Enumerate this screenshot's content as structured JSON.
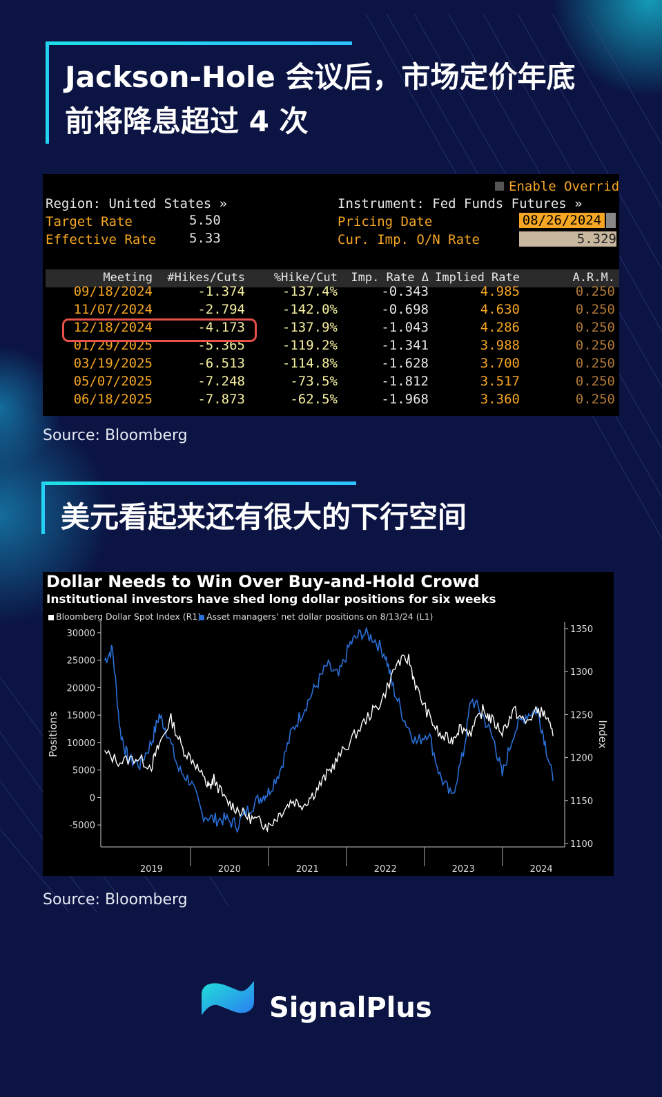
{
  "section1": {
    "title_line1": "Jackson-Hole 会议后，市场定价年底",
    "title_line2": "前将降息超过 4 次",
    "source": "Source: Bloomberg"
  },
  "terminal": {
    "enable_override": "Enable Override",
    "region": "Region: United States »",
    "instrument": "Instrument: Fed Funds Futures »",
    "target_rate_label": "Target Rate",
    "target_rate_value": "5.50",
    "effective_rate_label": "Effective Rate",
    "effective_rate_value": "5.33",
    "pricing_date_label": "Pricing Date",
    "pricing_date_value": "08/26/2024",
    "cur_imp_label": "Cur. Imp. O/N Rate",
    "cur_imp_value": "5.329",
    "columns": [
      "Meeting",
      "#Hikes/Cuts",
      "%Hike/Cut",
      "Imp. Rate Δ",
      "Implied Rate",
      "A.R.M."
    ],
    "rows": [
      [
        "09/18/2024",
        "-1.374",
        "-137.4%",
        "-0.343",
        "4.985",
        "0.250"
      ],
      [
        "11/07/2024",
        "-2.794",
        "-142.0%",
        "-0.698",
        "4.630",
        "0.250"
      ],
      [
        "12/18/2024",
        "-4.173",
        "-137.9%",
        "-1.043",
        "4.286",
        "0.250"
      ],
      [
        "01/29/2025",
        "-5.365",
        "-119.2%",
        "-1.341",
        "3.988",
        "0.250"
      ],
      [
        "03/19/2025",
        "-6.513",
        "-114.8%",
        "-1.628",
        "3.700",
        "0.250"
      ],
      [
        "05/07/2025",
        "-7.248",
        "-73.5%",
        "-1.812",
        "3.517",
        "0.250"
      ],
      [
        "06/18/2025",
        "-7.873",
        "-62.5%",
        "-1.968",
        "3.360",
        "0.250"
      ]
    ],
    "highlighted_row": 2,
    "colors": {
      "orange": "#f5a623",
      "yellow": "#f7f0a0",
      "highlight": "#e8504a"
    }
  },
  "section2": {
    "title": "美元看起来还有很大的下行空间",
    "source": "Source: Bloomberg"
  },
  "chart_data": {
    "type": "line",
    "title": "Dollar Needs to Win Over Buy-and-Hold Crowd",
    "subtitle": "Institutional investors have shed long dollar positions for six weeks",
    "ylabel_left": "Positions",
    "ylabel_right": "Index",
    "ylim_left": [
      -9000,
      30000
    ],
    "ylim_right": [
      1100,
      1350
    ],
    "yticks_left": [
      "30000",
      "25000",
      "20000",
      "15000",
      "10000",
      "5000",
      "0",
      "-5000"
    ],
    "yticks_right": [
      "1350",
      "1300",
      "1250",
      "1200",
      "1150",
      "1100"
    ],
    "xticks": [
      "2019",
      "2020",
      "2021",
      "2022",
      "2023",
      "2024"
    ],
    "series": [
      {
        "name": "Bloomberg Dollar Spot Index (R1)",
        "color": "#ffffff",
        "x": [
          2018.9,
          2019.1,
          2019.3,
          2019.5,
          2019.6,
          2019.75,
          2019.9,
          2020.05,
          2020.2,
          2020.25,
          2020.3,
          2020.45,
          2020.6,
          2020.75,
          2020.9,
          2021.0,
          2021.15,
          2021.3,
          2021.45,
          2021.6,
          2021.75,
          2021.9,
          2022.1,
          2022.3,
          2022.45,
          2022.65,
          2022.8,
          2022.9,
          2023.05,
          2023.2,
          2023.35,
          2023.45,
          2023.6,
          2023.75,
          2023.85,
          2024.0,
          2024.15,
          2024.3,
          2024.45,
          2024.55,
          2024.65
        ],
        "values": [
          1205,
          1195,
          1200,
          1190,
          1215,
          1245,
          1210,
          1195,
          1170,
          1165,
          1175,
          1150,
          1140,
          1130,
          1125,
          1120,
          1135,
          1150,
          1145,
          1160,
          1180,
          1200,
          1225,
          1250,
          1265,
          1310,
          1315,
          1280,
          1250,
          1225,
          1220,
          1235,
          1230,
          1255,
          1245,
          1230,
          1255,
          1240,
          1255,
          1250,
          1225
        ]
      },
      {
        "name": "Asset managers' net dollar positions on 8/13/24 (L1)",
        "color": "#2a6fd6",
        "x": [
          2018.9,
          2019.0,
          2019.1,
          2019.2,
          2019.35,
          2019.5,
          2019.6,
          2019.7,
          2019.85,
          2020.0,
          2020.15,
          2020.3,
          2020.45,
          2020.6,
          2020.75,
          2020.9,
          2021.0,
          2021.15,
          2021.3,
          2021.45,
          2021.6,
          2021.75,
          2021.9,
          2022.05,
          2022.2,
          2022.35,
          2022.5,
          2022.6,
          2022.75,
          2022.9,
          2023.05,
          2023.2,
          2023.35,
          2023.5,
          2023.6,
          2023.75,
          2023.9,
          2024.0,
          2024.15,
          2024.3,
          2024.45,
          2024.55,
          2024.65
        ],
        "values": [
          25000,
          27000,
          12000,
          7000,
          6000,
          10000,
          15000,
          12000,
          5000,
          3000,
          -3000,
          -4000,
          -4000,
          -5000,
          -2000,
          0,
          1000,
          5000,
          12000,
          16000,
          20000,
          24000,
          22000,
          28000,
          30000,
          29000,
          26000,
          20000,
          14000,
          10000,
          12000,
          4000,
          0,
          8000,
          18000,
          15000,
          10000,
          4000,
          12000,
          15000,
          16000,
          10000,
          3000
        ]
      }
    ]
  },
  "brand": {
    "name": "SignalPlus"
  }
}
